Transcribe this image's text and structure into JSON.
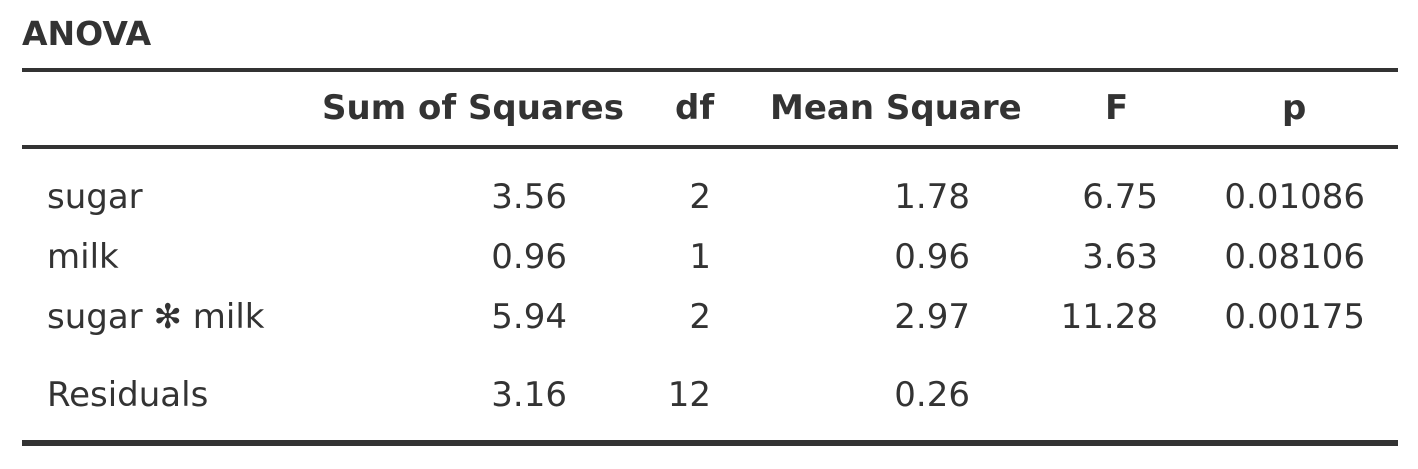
{
  "title": "ANOVA",
  "columns": {
    "term": "",
    "sum_of_squares": "Sum of Squares",
    "df": "df",
    "mean_square": "Mean Square",
    "f": "F",
    "p": "p"
  },
  "rows": [
    {
      "term": "sugar",
      "ss": "3.56",
      "df": "2",
      "ms": "1.78",
      "f": "6.75",
      "p": "0.01086"
    },
    {
      "term": "milk",
      "ss": "0.96",
      "df": "1",
      "ms": "0.96",
      "f": "3.63",
      "p": "0.08106"
    },
    {
      "term": "sugar ✻ milk",
      "ss": "5.94",
      "df": "2",
      "ms": "2.97",
      "f": "11.28",
      "p": "0.00175"
    },
    {
      "term": "Residuals",
      "ss": "3.16",
      "df": "12",
      "ms": "0.26",
      "f": "",
      "p": ""
    }
  ]
}
